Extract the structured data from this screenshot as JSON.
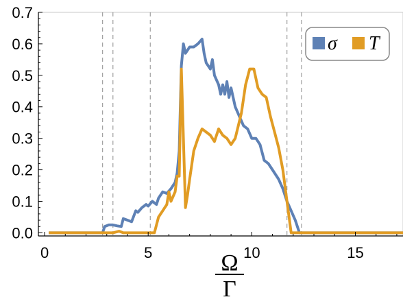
{
  "chart_data": {
    "type": "line",
    "xlabel": {
      "numerator": "Ω",
      "denominator": "Γ"
    },
    "ylabel": "",
    "xlim": [
      -0.3,
      17.3
    ],
    "ylim": [
      -0.01,
      0.7
    ],
    "xticks": [
      0,
      5,
      10,
      15
    ],
    "yticks": [
      0.0,
      0.1,
      0.2,
      0.3,
      0.4,
      0.5,
      0.6,
      0.7
    ],
    "ytick_labels": [
      "0.0",
      "0.1",
      "0.2",
      "0.3",
      "0.4",
      "0.5",
      "0.6",
      "0.7"
    ],
    "xtick_labels": [
      "0",
      "5",
      "10",
      "15"
    ],
    "vlines": [
      2.8,
      3.3,
      5.1,
      11.7,
      12.4
    ],
    "grid": false,
    "legend_position": "top-right",
    "series": [
      {
        "name": "σ",
        "color": "#5e81b5",
        "x": [
          0.2,
          2.8,
          2.9,
          3.1,
          3.3,
          3.5,
          3.7,
          3.8,
          4.0,
          4.2,
          4.4,
          4.5,
          4.7,
          4.9,
          5.0,
          5.2,
          5.4,
          5.5,
          5.7,
          5.9,
          6.1,
          6.3,
          6.4,
          6.5,
          6.6,
          6.7,
          6.8,
          7.0,
          7.2,
          7.4,
          7.6,
          7.7,
          7.8,
          8.0,
          8.1,
          8.2,
          8.4,
          8.5,
          8.6,
          8.7,
          8.8,
          8.9,
          9.0,
          9.2,
          9.4,
          9.6,
          9.8,
          10.0,
          10.2,
          10.4,
          10.6,
          10.8,
          11.0,
          11.3,
          11.5,
          11.7,
          11.9,
          12.1,
          12.3,
          17.3
        ],
        "y": [
          0.0,
          0.0,
          0.02,
          0.025,
          0.025,
          0.022,
          0.02,
          0.045,
          0.04,
          0.035,
          0.07,
          0.065,
          0.08,
          0.09,
          0.085,
          0.1,
          0.09,
          0.11,
          0.13,
          0.125,
          0.14,
          0.16,
          0.19,
          0.26,
          0.53,
          0.6,
          0.57,
          0.59,
          0.59,
          0.6,
          0.615,
          0.57,
          0.54,
          0.52,
          0.55,
          0.5,
          0.47,
          0.44,
          0.47,
          0.44,
          0.48,
          0.43,
          0.46,
          0.4,
          0.37,
          0.34,
          0.33,
          0.3,
          0.3,
          0.28,
          0.23,
          0.22,
          0.2,
          0.17,
          0.14,
          0.1,
          0.07,
          0.04,
          0.0,
          0.0
        ]
      },
      {
        "name": "T",
        "color": "#e19c24",
        "x": [
          0.2,
          3.3,
          3.6,
          3.8,
          5.3,
          5.5,
          5.7,
          5.9,
          6.0,
          6.1,
          6.3,
          6.4,
          6.5,
          6.6,
          6.7,
          6.8,
          6.9,
          7.0,
          7.2,
          7.4,
          7.6,
          7.8,
          8.0,
          8.2,
          8.4,
          8.6,
          8.8,
          9.0,
          9.2,
          9.5,
          9.7,
          9.9,
          10.0,
          10.1,
          10.3,
          10.5,
          10.7,
          10.9,
          11.1,
          11.3,
          11.5,
          11.7,
          11.9,
          17.3
        ],
        "y": [
          0.0,
          0.0,
          0.005,
          0.0,
          0.0,
          0.05,
          0.07,
          0.09,
          0.13,
          0.1,
          0.13,
          0.18,
          0.18,
          0.52,
          0.3,
          0.08,
          0.12,
          0.17,
          0.26,
          0.3,
          0.33,
          0.32,
          0.31,
          0.29,
          0.33,
          0.31,
          0.3,
          0.28,
          0.3,
          0.38,
          0.47,
          0.52,
          0.52,
          0.52,
          0.46,
          0.44,
          0.43,
          0.37,
          0.32,
          0.27,
          0.2,
          0.1,
          0.0,
          0.0
        ]
      }
    ]
  }
}
